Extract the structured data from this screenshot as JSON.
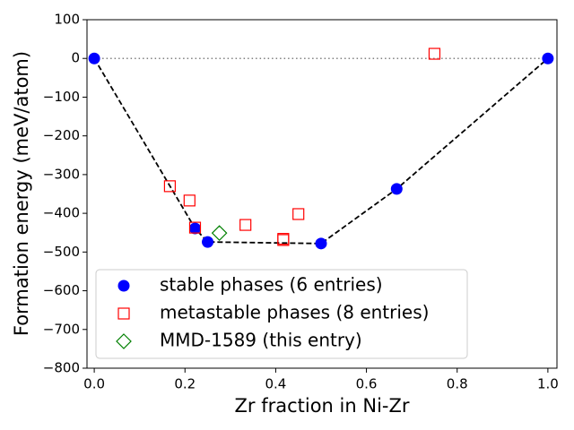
{
  "chart_data": {
    "type": "scatter",
    "xlabel": "Zr fraction in Ni-Zr",
    "ylabel": "Formation energy (meV/atom)",
    "xlim": [
      -0.016,
      1.02
    ],
    "ylim": [
      -800,
      100
    ],
    "xticks": [
      {
        "value": 0,
        "label": "0.0"
      },
      {
        "value": 0.2,
        "label": "0.2"
      },
      {
        "value": 0.4,
        "label": "0.4"
      },
      {
        "value": 0.6,
        "label": "0.6"
      },
      {
        "value": 0.8,
        "label": "0.8"
      },
      {
        "value": 1,
        "label": "1.0"
      }
    ],
    "yticks": [
      100,
      0,
      {
        "value": -100,
        "label": "−100"
      },
      {
        "value": -200,
        "label": "−200"
      },
      {
        "value": -300,
        "label": "−300"
      },
      {
        "value": -400,
        "label": "−400"
      },
      {
        "value": -500,
        "label": "−500"
      },
      {
        "value": -600,
        "label": "−600"
      },
      {
        "value": -700,
        "label": "−700"
      },
      {
        "value": -800,
        "label": "−800"
      }
    ],
    "hull_color": "#000000",
    "reference_line_y": 0,
    "legend": "lower left",
    "series": [
      {
        "name": "stable phases (6 entries)",
        "marker": "circle",
        "color": "#0000ff",
        "x": [
          0,
          0.2222,
          0.25,
          0.5,
          0.6667,
          1
        ],
        "values": [
          0,
          -439,
          -474,
          -478,
          -337,
          0
        ]
      },
      {
        "name": "metastable phases (8 entries)",
        "marker": "square",
        "color": "#ff0000",
        "x": [
          0.1667,
          0.21,
          0.2222,
          0.3333,
          0.4167,
          0.4167,
          0.45,
          0.75
        ],
        "values": [
          -330,
          -367,
          -437,
          -430,
          -469,
          -466,
          -402,
          12
        ]
      },
      {
        "name": "MMD-1589 (this entry)",
        "marker": "diamond",
        "color": "#008000",
        "x": [
          0.2759
        ],
        "values": [
          -451
        ]
      }
    ]
  }
}
